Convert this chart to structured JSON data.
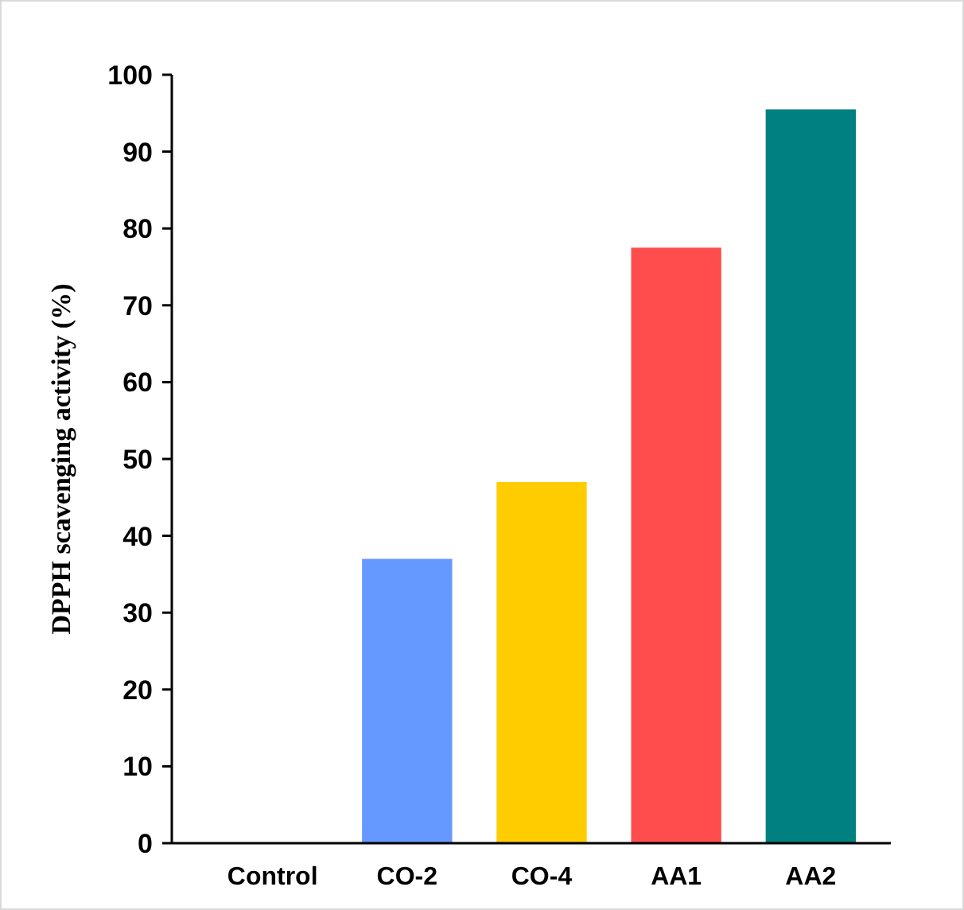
{
  "chart_data": {
    "type": "bar",
    "ylabel": "DPPH scavenging activity (%)",
    "categories": [
      "Control",
      "CO-2",
      "CO-4",
      "AA1",
      "AA2"
    ],
    "values": [
      0,
      37,
      47,
      77.5,
      95.5
    ],
    "colors": [
      "#6699ff",
      "#6699ff",
      "#ffcc00",
      "#ff4d4d",
      "#008080"
    ],
    "ylim": [
      0,
      100
    ],
    "yticks": [
      0,
      10,
      20,
      30,
      40,
      50,
      60,
      70,
      80,
      90,
      100
    ],
    "grid": false
  }
}
